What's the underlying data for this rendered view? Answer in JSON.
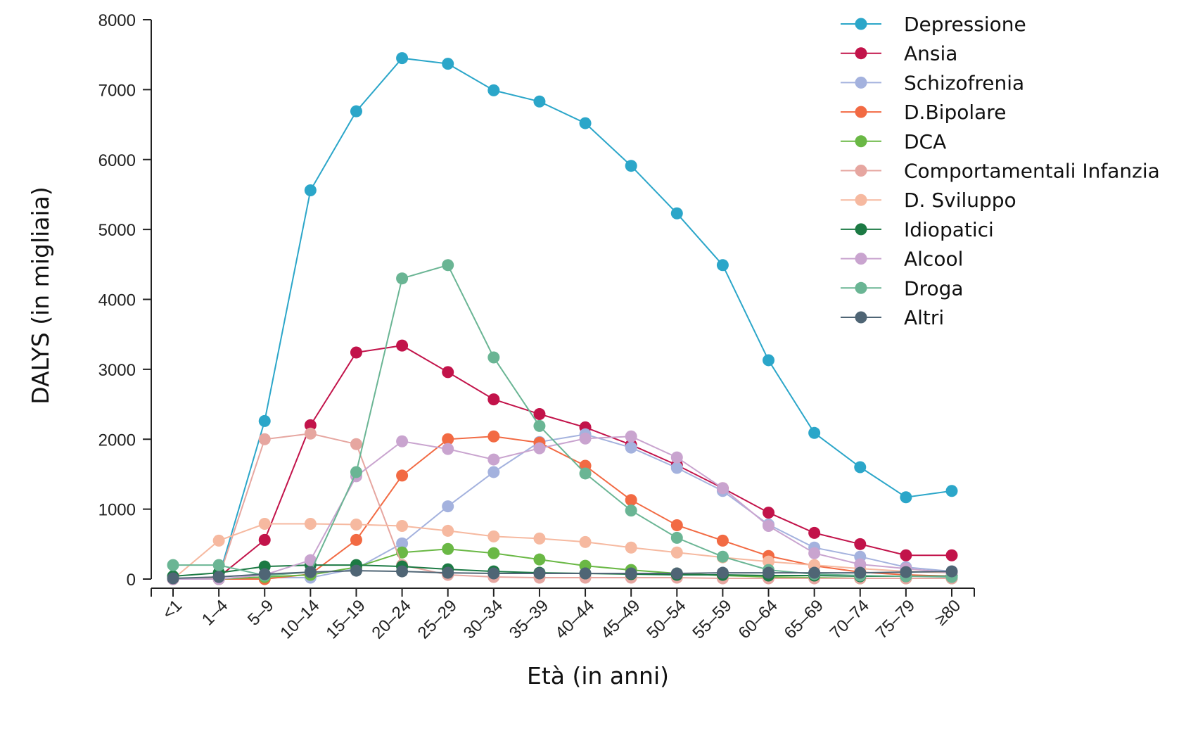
{
  "chart_data": {
    "type": "line",
    "title": "",
    "xlabel": "Età (in anni)",
    "ylabel": "DALYS (in migliaia)",
    "ylim": [
      0,
      8000
    ],
    "yticks": [
      0,
      1000,
      2000,
      3000,
      4000,
      5000,
      6000,
      7000,
      8000
    ],
    "grid": false,
    "legend": "top-right",
    "categories": [
      "<1",
      "1–4",
      "5–9",
      "10–14",
      "15–19",
      "20–24",
      "25–29",
      "30–34",
      "35–39",
      "40–44",
      "45–49",
      "50–54",
      "55–59",
      "60–64",
      "65–69",
      "70–74",
      "75–79",
      "≥80"
    ],
    "series": [
      {
        "name": "Depressione",
        "color": "#2ba6c9",
        "values": [
          0,
          30,
          2260,
          5560,
          6690,
          7450,
          7370,
          6990,
          6830,
          6520,
          5910,
          5230,
          4490,
          3130,
          2090,
          1600,
          1170,
          1260
        ]
      },
      {
        "name": "Ansia",
        "color": "#c2134a",
        "values": [
          0,
          30,
          560,
          2200,
          3240,
          3340,
          2960,
          2570,
          2360,
          2170,
          1920,
          1630,
          1300,
          950,
          660,
          500,
          340,
          340
        ]
      },
      {
        "name": "Schizofrenia",
        "color": "#a4b2de",
        "values": [
          0,
          0,
          20,
          20,
          150,
          510,
          1040,
          1530,
          1960,
          2070,
          1880,
          1590,
          1260,
          780,
          450,
          320,
          170,
          110
        ]
      },
      {
        "name": "D.Bipolare",
        "color": "#f26a43",
        "values": [
          0,
          0,
          0,
          70,
          560,
          1480,
          2000,
          2040,
          1950,
          1620,
          1130,
          770,
          550,
          330,
          190,
          100,
          60,
          40
        ]
      },
      {
        "name": "DCA",
        "color": "#6ab845",
        "values": [
          0,
          0,
          30,
          60,
          170,
          380,
          430,
          370,
          280,
          190,
          130,
          80,
          50,
          30,
          20,
          10,
          10,
          10
        ]
      },
      {
        "name": "Comportamentali Infanzia",
        "color": "#e6a6a0",
        "values": [
          0,
          20,
          2000,
          2080,
          1930,
          200,
          60,
          30,
          20,
          20,
          20,
          20,
          10,
          10,
          10,
          10,
          10,
          10
        ]
      },
      {
        "name": "D. Sviluppo",
        "color": "#f6b9a0",
        "values": [
          0,
          550,
          790,
          790,
          780,
          760,
          690,
          610,
          580,
          530,
          450,
          380,
          310,
          250,
          200,
          150,
          110,
          90
        ]
      },
      {
        "name": "Idiopatici",
        "color": "#1c7a44",
        "values": [
          40,
          90,
          180,
          200,
          200,
          180,
          140,
          110,
          90,
          80,
          70,
          60,
          60,
          50,
          50,
          40,
          40,
          40
        ]
      },
      {
        "name": "Alcool",
        "color": "#c9a4cf",
        "values": [
          0,
          0,
          60,
          270,
          1470,
          1970,
          1860,
          1710,
          1870,
          2010,
          2040,
          1740,
          1300,
          760,
          370,
          210,
          150,
          90
        ]
      },
      {
        "name": "Droga",
        "color": "#6ab594",
        "values": [
          200,
          200,
          50,
          100,
          1530,
          4300,
          4490,
          3170,
          2190,
          1510,
          980,
          590,
          320,
          130,
          70,
          50,
          40,
          30
        ]
      },
      {
        "name": "Altri",
        "color": "#4f6575",
        "values": [
          10,
          30,
          70,
          100,
          120,
          110,
          90,
          80,
          80,
          80,
          80,
          80,
          90,
          90,
          90,
          90,
          100,
          110
        ]
      }
    ]
  }
}
